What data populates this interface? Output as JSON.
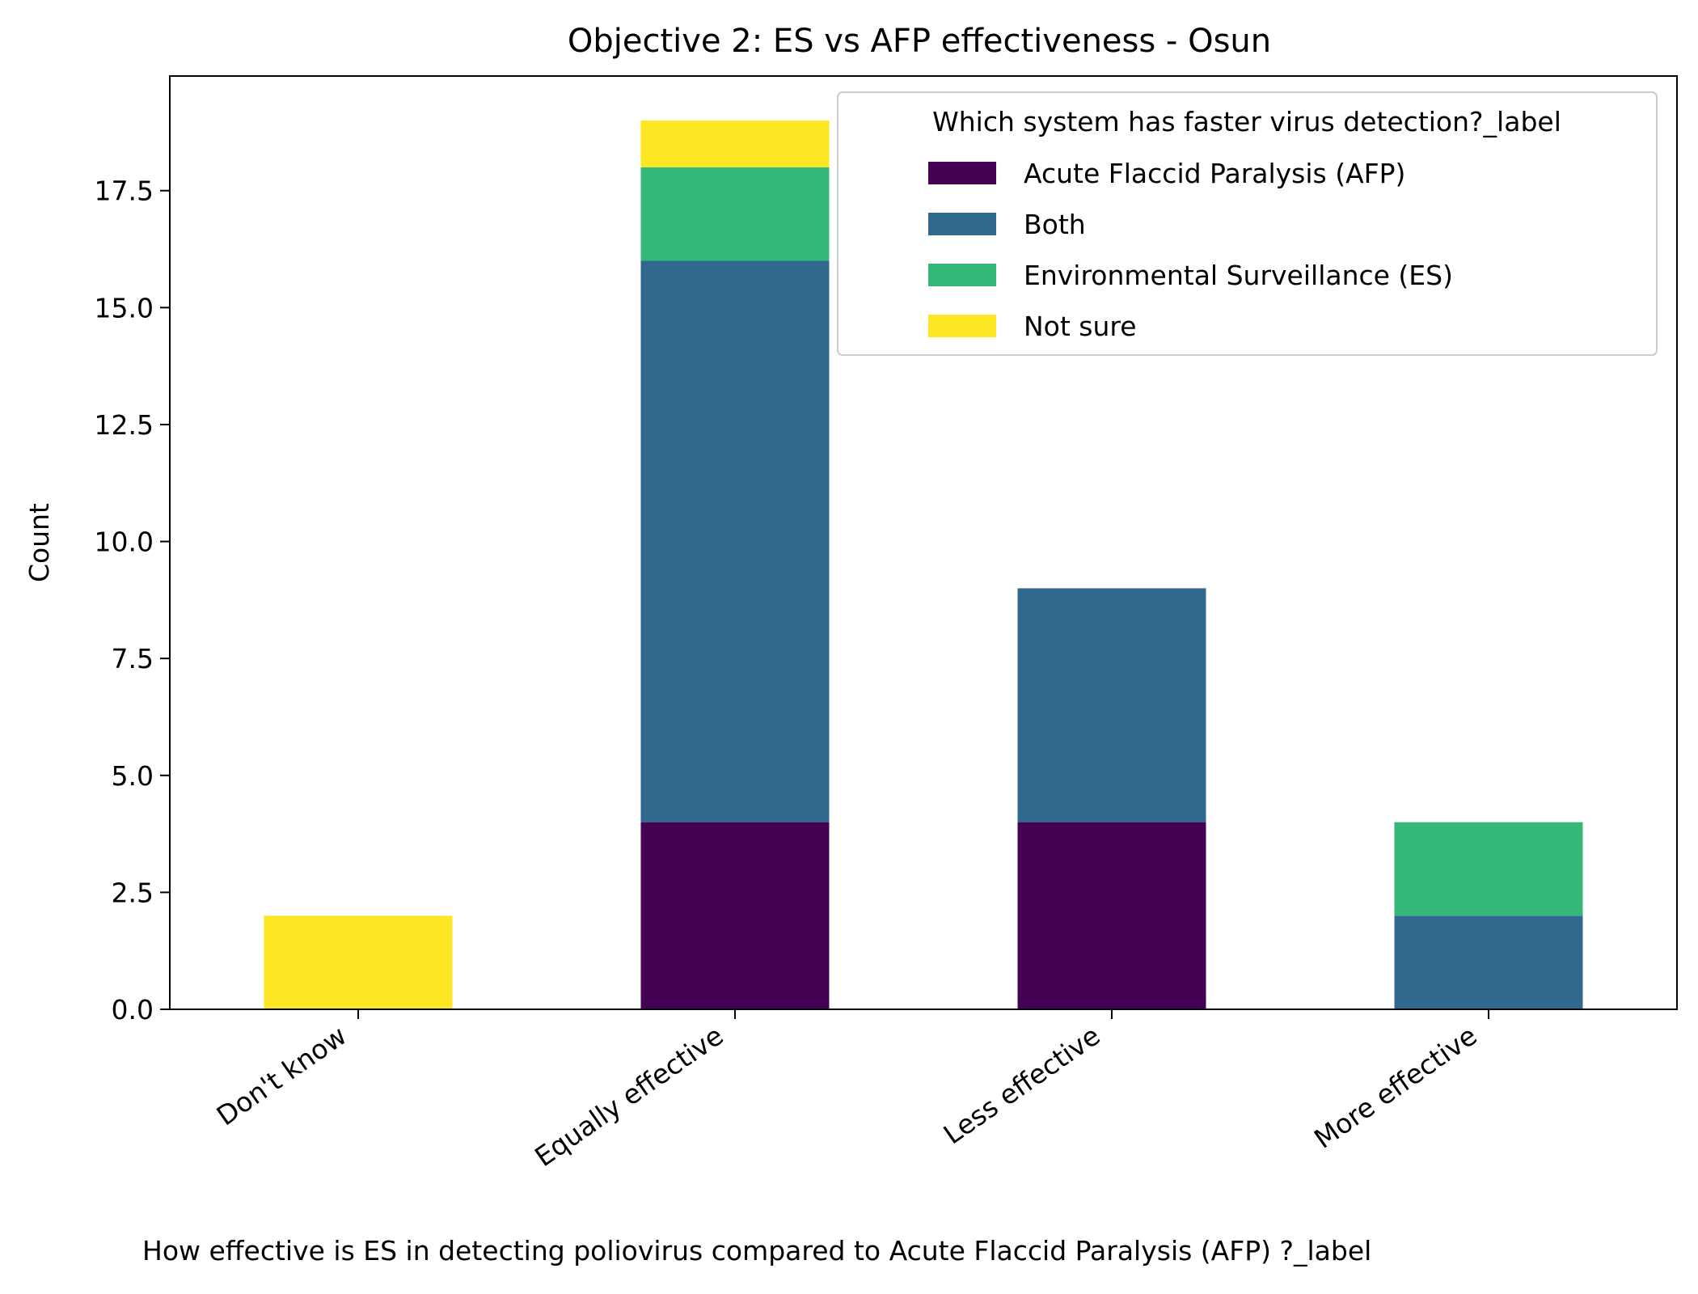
{
  "chart_data": {
    "type": "bar",
    "stacked": true,
    "title": "Objective 2: ES vs AFP effectiveness - Osun",
    "xlabel": "How effective is ES in detecting poliovirus compared to  Acute Flaccid Paralysis (AFP) ?_label",
    "ylabel": "Count",
    "ylim": [
      0,
      19.95
    ],
    "yticks": [
      0.0,
      2.5,
      5.0,
      7.5,
      10.0,
      12.5,
      15.0,
      17.5
    ],
    "categories": [
      "Don't know",
      "Equally effective",
      "Less effective",
      "More effective"
    ],
    "legend": {
      "title": "Which system has faster virus detection?_label",
      "placement": "upper right"
    },
    "series": [
      {
        "name": "Acute Flaccid Paralysis (AFP)",
        "color": "#440154",
        "values": [
          0,
          4,
          4,
          0
        ]
      },
      {
        "name": "Both",
        "color": "#31688e",
        "values": [
          0,
          12,
          5,
          2
        ]
      },
      {
        "name": "Environmental Surveillance (ES)",
        "color": "#35b779",
        "values": [
          0,
          2,
          0,
          2
        ]
      },
      {
        "name": "Not sure",
        "color": "#fde725",
        "values": [
          2,
          1,
          0,
          0
        ]
      }
    ]
  }
}
